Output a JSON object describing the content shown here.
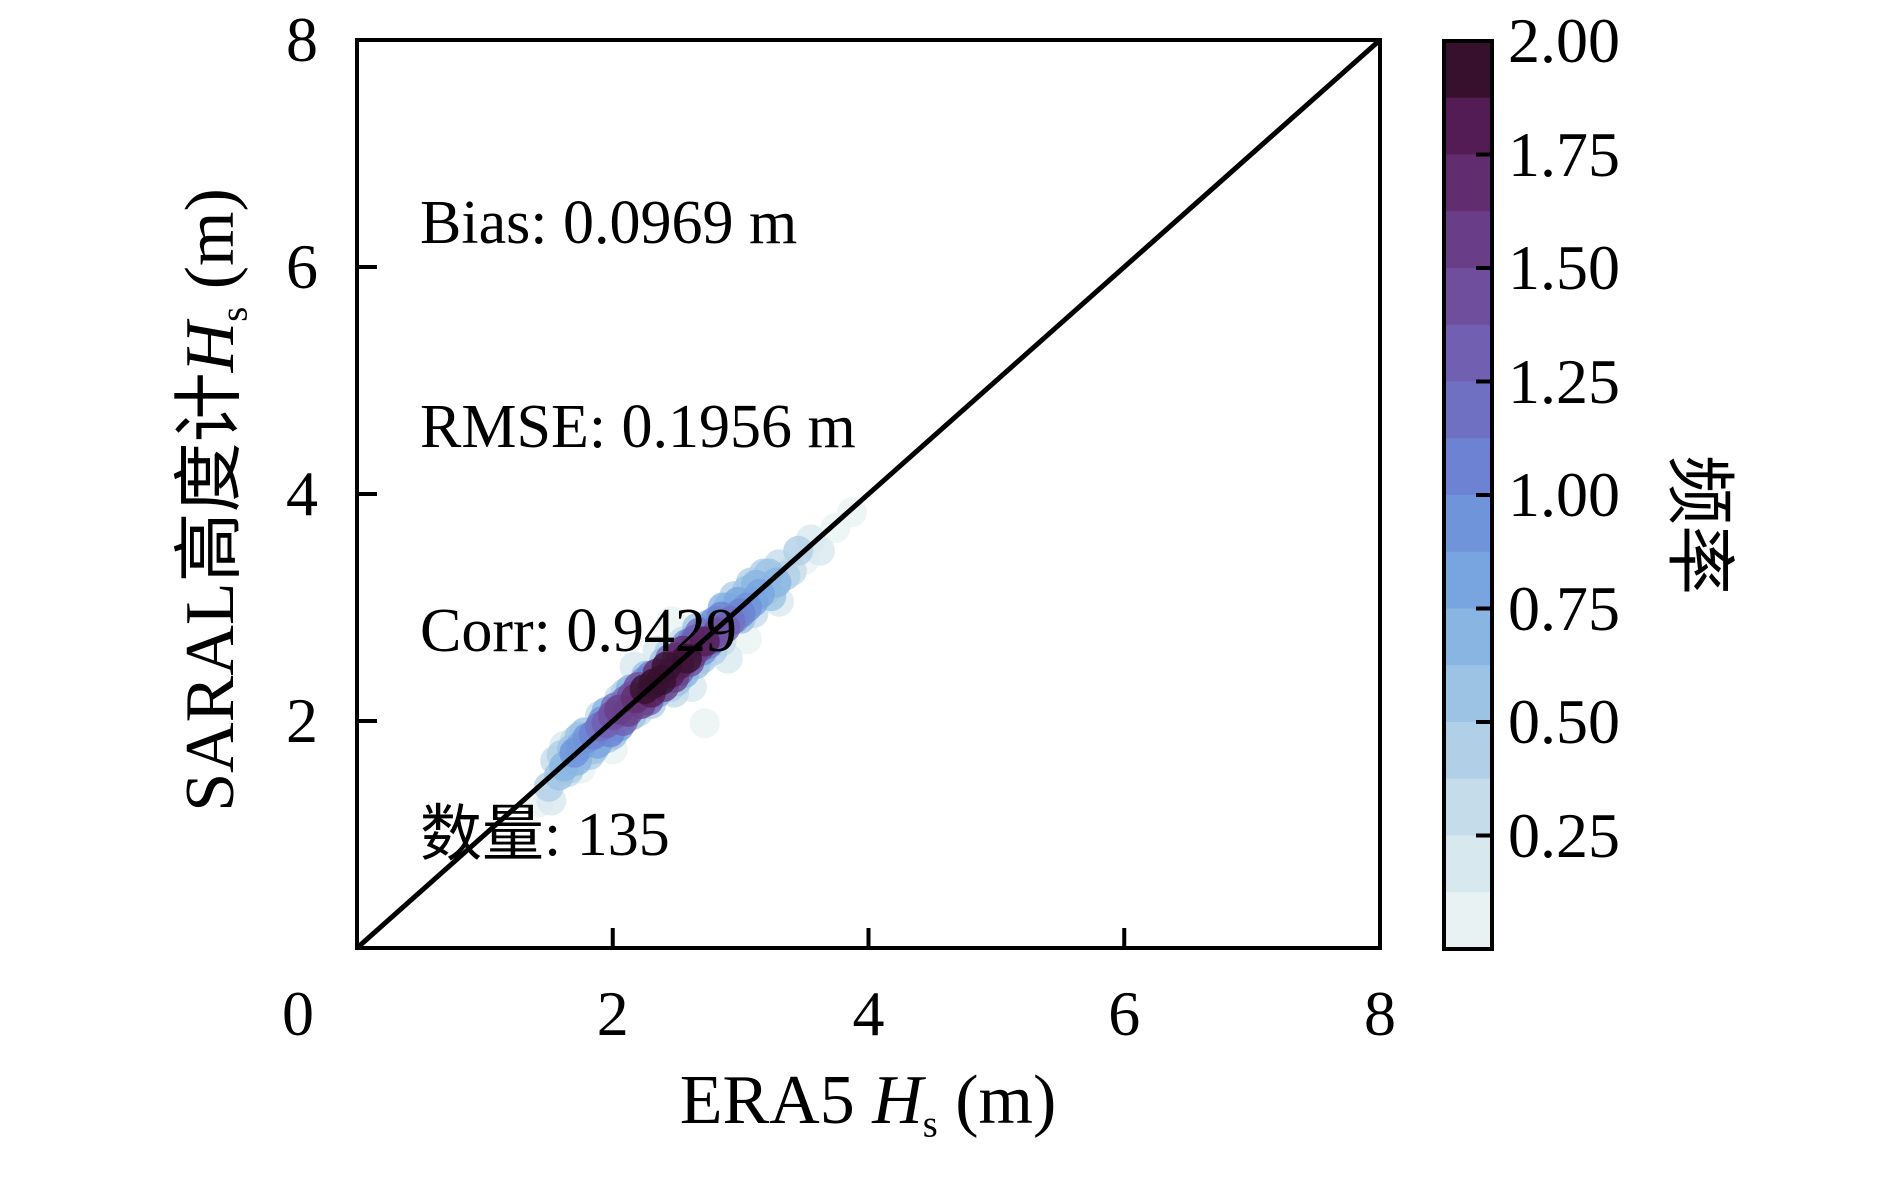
{
  "stats": {
    "lines": [
      "Bias: 0.0969 m",
      "RMSE: 0.1956 m",
      "Corr: 0.9429",
      "数量: 135"
    ]
  },
  "chart_data": {
    "type": "scatter",
    "title": "",
    "xlabel_parts": {
      "prefix": "ERA5 ",
      "var": "H",
      "sub": "s",
      "suffix": " (m)"
    },
    "ylabel_parts": {
      "prefix": "SARAL高度计",
      "var": "H",
      "sub": "s",
      "suffix": " (m)"
    },
    "xlabel": "ERA5 Hs (m)",
    "ylabel": "SARAL高度计 Hs (m)",
    "xlim": [
      0,
      8
    ],
    "ylim": [
      0,
      8
    ],
    "xticks": [
      "0",
      "2",
      "4",
      "6",
      "8"
    ],
    "yticks": [
      "2",
      "4",
      "6",
      "8"
    ],
    "grid": false,
    "identity_line": true,
    "stats_annotation": [
      "Bias: 0.0969 m",
      "RMSE: 0.1956 m",
      "Corr: 0.9429",
      "数量: 135"
    ],
    "marker_opacity": 0.8,
    "color_dimension": "频率 (frequency)",
    "colorbar": {
      "label": "频率",
      "vmin": 0.0,
      "vmax": 2.0,
      "segments": 16,
      "tick_labels": [
        "0.25",
        "0.50",
        "0.75",
        "1.00",
        "1.25",
        "1.50",
        "1.75",
        "2.00"
      ],
      "tick_values": [
        0.25,
        0.5,
        0.75,
        1.0,
        1.25,
        1.5,
        1.75,
        2.0
      ],
      "palette_light_to_dark": [
        "#e9f2f3",
        "#d8e8ef",
        "#c5dcea",
        "#b1d0e7",
        "#9cc3e4",
        "#88b5e2",
        "#78a5e0",
        "#6f94da",
        "#6d82d2",
        "#7070c3",
        "#715fb1",
        "#6f4e9d",
        "#693d87",
        "#612d6f",
        "#531c54",
        "#37102e"
      ]
    },
    "points_format": [
      "era5_hs_m",
      "saral_hs_m",
      "frequency"
    ],
    "points": [
      [
        1.42,
        1.28,
        0.12
      ],
      [
        1.52,
        1.3,
        0.18
      ],
      [
        1.75,
        1.58,
        0.1
      ],
      [
        2.17,
        2.48,
        0.15
      ],
      [
        2.46,
        2.88,
        0.12
      ],
      [
        2.62,
        2.3,
        0.2
      ],
      [
        2.72,
        1.98,
        0.1
      ],
      [
        2.9,
        2.55,
        0.15
      ],
      [
        3.05,
        2.72,
        0.12
      ],
      [
        3.3,
        3.05,
        0.18
      ],
      [
        3.5,
        3.42,
        0.1
      ],
      [
        3.62,
        3.5,
        0.15
      ],
      [
        3.74,
        3.7,
        0.12
      ],
      [
        3.87,
        3.84,
        0.1
      ],
      [
        2.35,
        2.62,
        0.2
      ],
      [
        1.62,
        1.78,
        0.14
      ],
      [
        3.55,
        3.6,
        0.22
      ],
      [
        2.0,
        1.75,
        0.12
      ],
      [
        1.5,
        1.42,
        0.38
      ],
      [
        1.55,
        1.65,
        0.3
      ],
      [
        1.6,
        1.7,
        0.45
      ],
      [
        1.65,
        1.55,
        0.35
      ],
      [
        1.7,
        1.82,
        0.28
      ],
      [
        1.82,
        1.7,
        0.42
      ],
      [
        1.9,
        2.05,
        0.32
      ],
      [
        2.1,
        2.25,
        0.45
      ],
      [
        2.2,
        2.08,
        0.3
      ],
      [
        2.3,
        2.15,
        0.38
      ],
      [
        2.55,
        2.7,
        0.35
      ],
      [
        2.7,
        2.55,
        0.42
      ],
      [
        2.85,
        2.7,
        0.3
      ],
      [
        2.95,
        3.1,
        0.45
      ],
      [
        3.1,
        2.95,
        0.33
      ],
      [
        3.18,
        3.3,
        0.4
      ],
      [
        3.3,
        3.38,
        0.3
      ],
      [
        3.35,
        3.28,
        0.45
      ],
      [
        3.4,
        3.32,
        0.35
      ],
      [
        2.05,
        2.2,
        0.28
      ],
      [
        2.45,
        2.3,
        0.42
      ],
      [
        3.45,
        3.5,
        0.38
      ],
      [
        1.66,
        1.58,
        0.48
      ],
      [
        1.74,
        1.86,
        0.5
      ],
      [
        1.96,
        1.85,
        0.47
      ],
      [
        2.26,
        2.4,
        0.5
      ],
      [
        2.44,
        2.6,
        0.48
      ],
      [
        2.66,
        2.82,
        0.5
      ],
      [
        2.78,
        2.62,
        0.47
      ],
      [
        3.08,
        3.22,
        0.47
      ],
      [
        3.24,
        3.1,
        0.5
      ],
      [
        2.48,
        2.25,
        0.26
      ],
      [
        1.62,
        1.6,
        0.65
      ],
      [
        1.68,
        1.75,
        0.55
      ],
      [
        1.72,
        1.65,
        0.7
      ],
      [
        1.78,
        1.9,
        0.6
      ],
      [
        1.85,
        1.75,
        0.52
      ],
      [
        1.95,
        2.08,
        0.68
      ],
      [
        2.0,
        1.88,
        0.58
      ],
      [
        2.4,
        2.52,
        0.62
      ],
      [
        2.5,
        2.35,
        0.55
      ],
      [
        2.65,
        2.5,
        0.6
      ],
      [
        2.9,
        3.0,
        0.72
      ],
      [
        3.05,
        3.15,
        0.58
      ],
      [
        3.12,
        3.2,
        0.65
      ],
      [
        3.2,
        3.15,
        0.55
      ],
      [
        3.22,
        3.3,
        0.6
      ],
      [
        3.28,
        3.22,
        0.68
      ],
      [
        2.15,
        2.05,
        0.52
      ],
      [
        2.75,
        2.85,
        0.65
      ],
      [
        1.58,
        1.52,
        0.6
      ],
      [
        3.0,
        2.9,
        0.52
      ],
      [
        2.06,
        2.02,
        0.75
      ],
      [
        2.14,
        2.28,
        0.73
      ],
      [
        2.56,
        2.42,
        0.73
      ],
      [
        2.86,
        3.0,
        0.73
      ],
      [
        1.75,
        1.78,
        0.85
      ],
      [
        1.8,
        1.85,
        0.95
      ],
      [
        1.88,
        1.8,
        0.78
      ],
      [
        1.92,
        2.0,
        0.9
      ],
      [
        2.05,
        1.95,
        0.8
      ],
      [
        2.25,
        2.35,
        0.92
      ],
      [
        2.58,
        2.68,
        0.88
      ],
      [
        2.8,
        2.88,
        0.95
      ],
      [
        2.98,
        3.05,
        0.82
      ],
      [
        3.05,
        3.0,
        0.9
      ],
      [
        3.1,
        3.05,
        0.78
      ],
      [
        3.15,
        3.12,
        0.85
      ],
      [
        2.35,
        2.25,
        0.8
      ],
      [
        2.7,
        2.62,
        0.95
      ],
      [
        1.7,
        1.72,
        0.88
      ],
      [
        1.85,
        1.88,
        1.1
      ],
      [
        1.9,
        1.95,
        1.2
      ],
      [
        1.98,
        1.9,
        1.05
      ],
      [
        2.02,
        2.12,
        1.15
      ],
      [
        2.3,
        2.4,
        1.08
      ],
      [
        2.68,
        2.78,
        1.18
      ],
      [
        2.75,
        2.68,
        1.05
      ],
      [
        2.85,
        2.92,
        1.12
      ],
      [
        2.92,
        2.88,
        1.2
      ],
      [
        2.95,
        2.9,
        1.02
      ],
      [
        3.0,
        2.95,
        1.1
      ],
      [
        2.1,
        2.18,
        1.22
      ],
      [
        2.62,
        2.7,
        1.06
      ],
      [
        1.95,
        1.98,
        1.3
      ],
      [
        2.0,
        2.05,
        1.45
      ],
      [
        2.08,
        2.0,
        1.35
      ],
      [
        2.15,
        2.22,
        1.4
      ],
      [
        2.28,
        2.18,
        1.28
      ],
      [
        2.6,
        2.52,
        1.45
      ],
      [
        2.65,
        2.72,
        1.35
      ],
      [
        2.78,
        2.72,
        1.3
      ],
      [
        2.82,
        2.78,
        1.42
      ],
      [
        2.88,
        2.82,
        1.3
      ],
      [
        2.2,
        2.3,
        1.38
      ],
      [
        2.45,
        2.55,
        1.26
      ],
      [
        2.52,
        2.44,
        1.33
      ],
      [
        2.05,
        2.1,
        1.6
      ],
      [
        2.12,
        2.08,
        1.55
      ],
      [
        2.18,
        2.2,
        1.7
      ],
      [
        2.22,
        2.15,
        1.5
      ],
      [
        2.35,
        2.42,
        1.65
      ],
      [
        2.48,
        2.38,
        1.58
      ],
      [
        2.55,
        2.62,
        1.72
      ],
      [
        2.62,
        2.58,
        1.52
      ],
      [
        2.68,
        2.65,
        1.6
      ],
      [
        2.72,
        2.7,
        1.75
      ],
      [
        2.4,
        2.3,
        1.55
      ],
      [
        2.5,
        2.56,
        1.68
      ],
      [
        2.25,
        2.28,
        1.95
      ],
      [
        2.32,
        2.33,
        2.0
      ],
      [
        2.38,
        2.36,
        1.9
      ],
      [
        2.45,
        2.42,
        1.85
      ],
      [
        2.52,
        2.5,
        1.8
      ],
      [
        2.58,
        2.55,
        1.95
      ],
      [
        2.3,
        2.25,
        1.8
      ],
      [
        2.42,
        2.48,
        1.88
      ]
    ]
  }
}
